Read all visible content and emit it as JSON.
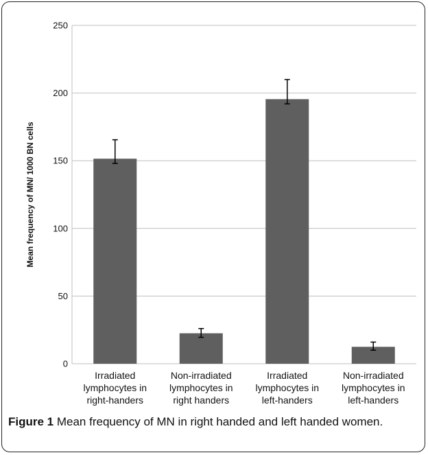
{
  "figure": {
    "caption_label": "Figure 1",
    "caption_text": "Mean frequency of MN in right handed and left handed women."
  },
  "chart_data": {
    "type": "bar",
    "ylabel": "Mean frequency of MN/ 1000 BN cells",
    "xlabel": "",
    "ylim": [
      0,
      250
    ],
    "yticks": [
      0,
      50,
      100,
      150,
      200,
      250
    ],
    "grid": true,
    "bar_color": "#5f5f5f",
    "categories": [
      [
        "Irradiated",
        "lymphocytes in",
        "right-handers"
      ],
      [
        "Non-irradiated",
        "lymphocytes in",
        "right handers"
      ],
      [
        "Irradiated",
        "lymphocytes in",
        "left-handers"
      ],
      [
        "Non-irradiated",
        "lymphocytes in",
        "left-handers"
      ]
    ],
    "values": [
      151.5,
      22.5,
      195.5,
      12.5
    ],
    "error_high": [
      165.5,
      26,
      210,
      16
    ],
    "error_low": [
      148,
      19.5,
      192,
      10
    ]
  }
}
